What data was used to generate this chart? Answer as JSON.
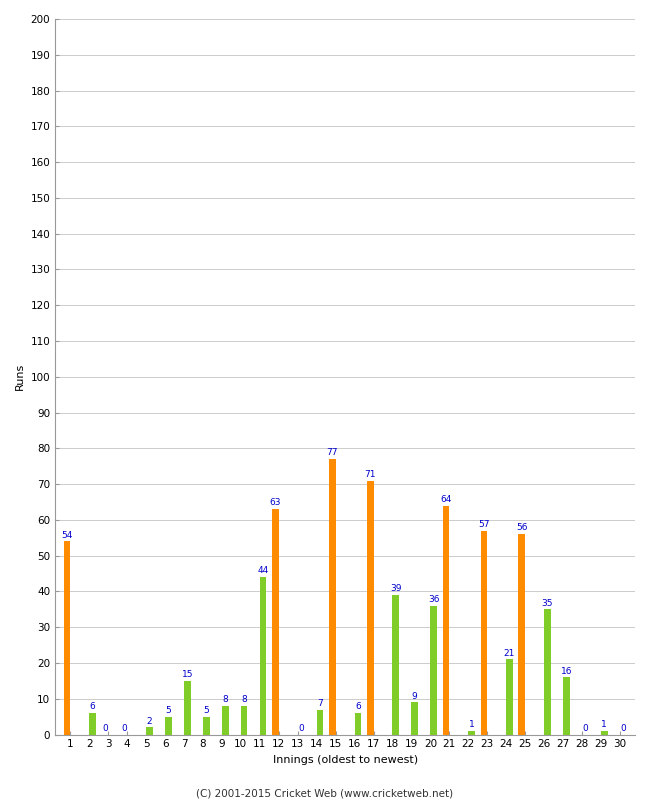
{
  "xlabel": "Innings (oldest to newest)",
  "ylabel": "Runs",
  "footer": "(C) 2001-2015 Cricket Web (www.cricketweb.net)",
  "ylim": [
    0,
    200
  ],
  "yticks": [
    0,
    10,
    20,
    30,
    40,
    50,
    60,
    70,
    80,
    90,
    100,
    110,
    120,
    130,
    140,
    150,
    160,
    170,
    180,
    190,
    200
  ],
  "innings": [
    1,
    2,
    3,
    4,
    5,
    6,
    7,
    8,
    9,
    10,
    11,
    12,
    13,
    14,
    15,
    16,
    17,
    18,
    19,
    20,
    21,
    22,
    23,
    24,
    25,
    26,
    27,
    28,
    29,
    30
  ],
  "orange_bars": [
    54,
    0,
    0,
    0,
    0,
    0,
    0,
    0,
    0,
    0,
    0,
    63,
    0,
    0,
    77,
    0,
    71,
    0,
    0,
    0,
    64,
    0,
    57,
    0,
    56,
    0,
    0,
    0,
    0,
    0
  ],
  "green_bars": [
    0,
    6,
    0,
    0,
    2,
    5,
    15,
    5,
    8,
    8,
    44,
    0,
    0,
    7,
    0,
    6,
    0,
    39,
    9,
    36,
    0,
    1,
    0,
    21,
    0,
    35,
    16,
    0,
    1,
    0
  ],
  "orange_color": "#FF8C00",
  "green_color": "#80CC28",
  "label_color": "#0000CC",
  "bg_color": "#FFFFFF",
  "grid_color": "#CCCCCC",
  "label_fontsize": 6.5,
  "tick_fontsize": 7.5,
  "axis_label_fontsize": 8,
  "footer_fontsize": 7.5,
  "zero_orange": [
    3,
    4
  ],
  "zero_green": [
    13,
    28,
    30
  ]
}
